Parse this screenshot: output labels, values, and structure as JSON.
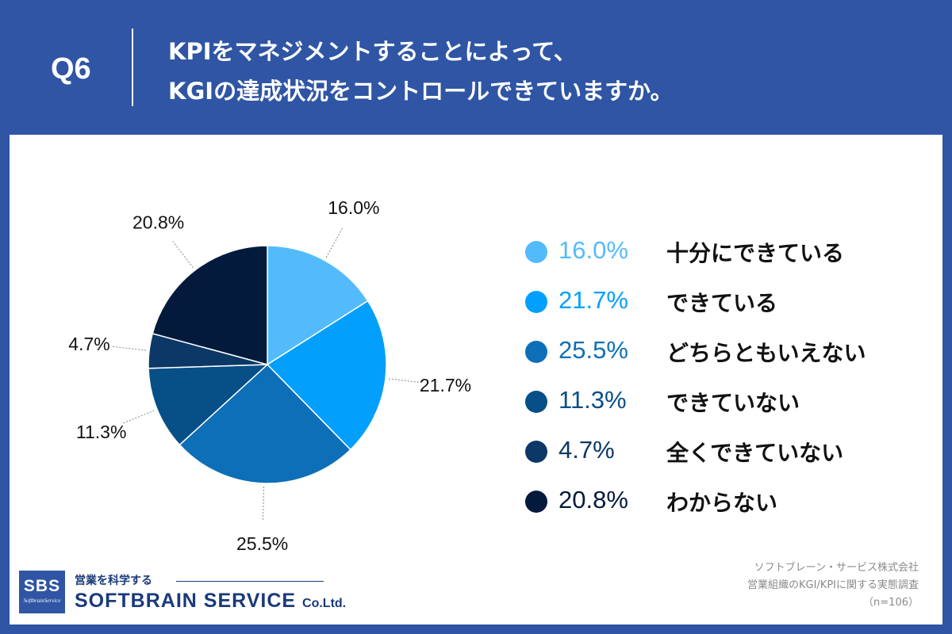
{
  "header": {
    "question_number": "Q6",
    "title_line1": "KPIをマネジメントすることによって、",
    "title_line2": "KGIの達成状況をコントロールできていますか。"
  },
  "chart_data": {
    "type": "pie",
    "slices": [
      {
        "label": "十分にできている",
        "value": 16.0,
        "value_label": "16.0%",
        "color": "#53bbfb"
      },
      {
        "label": "できている",
        "value": 21.7,
        "value_label": "21.7%",
        "color": "#039ffd"
      },
      {
        "label": "どちらともいえない",
        "value": 25.5,
        "value_label": "25.5%",
        "color": "#0d6fb7"
      },
      {
        "label": "できていない",
        "value": 11.3,
        "value_label": "11.3%",
        "color": "#074f87"
      },
      {
        "label": "全くできていない",
        "value": 4.7,
        "value_label": "4.7%",
        "color": "#0b3866"
      },
      {
        "label": "わからない",
        "value": 20.8,
        "value_label": "20.8%",
        "color": "#041a3d"
      }
    ],
    "start_angle": "12 o'clock",
    "direction": "clockwise",
    "legend_position": "right"
  },
  "legend": {
    "items": [
      {
        "pct": "16.0%",
        "label": "十分にできている",
        "color": "#53bbfb"
      },
      {
        "pct": "21.7%",
        "label": "できている",
        "color": "#039ffd"
      },
      {
        "pct": "25.5%",
        "label": "どちらともいえない",
        "color": "#0d6fb7"
      },
      {
        "pct": "11.3%",
        "label": "できていない",
        "color": "#074f87"
      },
      {
        "pct": "4.7%",
        "label": "全くできていない",
        "color": "#0b3866"
      },
      {
        "pct": "20.8%",
        "label": "わからない",
        "color": "#041a3d"
      }
    ]
  },
  "footer": {
    "logo_abbr": "SBS",
    "logo_sub": "SoftbrainService",
    "logo_tagline": "営業を科学する",
    "logo_name": "SOFTBRAIN SERVICE",
    "logo_suffix": "Co.Ltd.",
    "source_line1": "ソフトブレーン・サービス株式会社",
    "source_line2": "営業組織のKGI/KPIに関する実態調査",
    "source_line3": "（n=106）"
  },
  "colors": {
    "background": "#2f55a4",
    "panel": "#ffffff",
    "brand_text": "#1a3a7a"
  }
}
